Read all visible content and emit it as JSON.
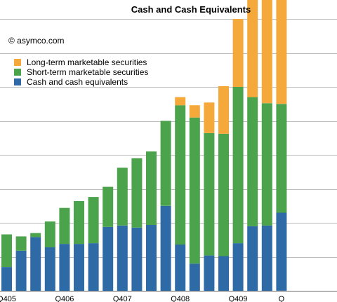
{
  "chart_data": {
    "type": "bar",
    "stacked": true,
    "title": "Cash and Cash Equivalents",
    "annotation": "© asymco.com",
    "legend_position": "top-left",
    "grid": true,
    "categories": [
      "",
      "",
      "",
      "",
      "",
      "",
      "",
      "",
      "",
      "",
      "",
      "",
      "",
      "",
      "",
      "",
      "",
      "",
      "",
      ""
    ],
    "tick_labels": [
      {
        "index": 0,
        "label": "Q405"
      },
      {
        "index": 4,
        "label": "Q406"
      },
      {
        "index": 8,
        "label": "Q407"
      },
      {
        "index": 12,
        "label": "Q408"
      },
      {
        "index": 16,
        "label": "Q409"
      },
      {
        "index": 19,
        "label": "Q"
      }
    ],
    "ylim": [
      0,
      50
    ],
    "yticks": [
      0,
      5,
      10,
      15,
      20,
      25,
      30,
      35,
      40,
      45,
      50
    ],
    "series": [
      {
        "name": "Cash and cash equivalents",
        "color": "#2e6ba6",
        "values": [
          3.5,
          5.9,
          7.9,
          6.4,
          6.9,
          6.9,
          7.0,
          9.4,
          9.6,
          9.3,
          9.7,
          12.5,
          6.8,
          4.0,
          5.2,
          5.1,
          7.0,
          9.5,
          9.6,
          11.5
        ]
      },
      {
        "name": "Short-term marketable securities",
        "color": "#4ba34b",
        "values": [
          4.8,
          2.1,
          0.6,
          3.8,
          5.3,
          6.3,
          6.8,
          5.9,
          8.5,
          10.2,
          10.8,
          12.5,
          20.5,
          21.5,
          18.0,
          18.0,
          23.0,
          19.0,
          18.0,
          16.0
        ]
      },
      {
        "name": "Long-term marketable securities",
        "color": "#f5a93a",
        "values": [
          0,
          0,
          0,
          0,
          0,
          0,
          0,
          0,
          0,
          0,
          0,
          0,
          1.2,
          1.8,
          4.5,
          7.0,
          10.0,
          15.0,
          20.5,
          24.6
        ]
      }
    ]
  }
}
